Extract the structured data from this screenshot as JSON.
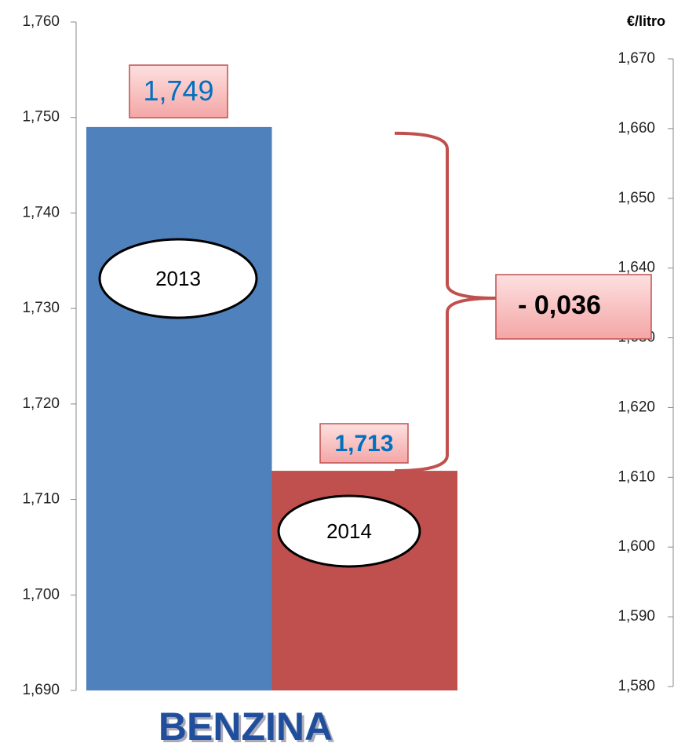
{
  "chart_data": {
    "type": "bar",
    "categories": [
      "2013",
      "2014"
    ],
    "values": [
      1.749,
      1.713
    ],
    "value_labels": [
      "1,749",
      "1,713"
    ],
    "colors": [
      "#4f81bd",
      "#c0504d"
    ],
    "ylim": [
      1.69,
      1.76
    ],
    "yticks": [
      {
        "value": 1.69,
        "label": "1,690"
      },
      {
        "value": 1.7,
        "label": "1,700"
      },
      {
        "value": 1.71,
        "label": "1,710"
      },
      {
        "value": 1.72,
        "label": "1,720"
      },
      {
        "value": 1.73,
        "label": "1,730"
      },
      {
        "value": 1.74,
        "label": "1,740"
      },
      {
        "value": 1.75,
        "label": "1,750"
      },
      {
        "value": 1.76,
        "label": "1,760"
      }
    ],
    "y2lim": [
      1.58,
      1.67
    ],
    "y2ticks": [
      {
        "value": 1.58,
        "label": "1,580"
      },
      {
        "value": 1.59,
        "label": "1,590"
      },
      {
        "value": 1.6,
        "label": "1,600"
      },
      {
        "value": 1.61,
        "label": "1,610"
      },
      {
        "value": 1.62,
        "label": "1,620"
      },
      {
        "value": 1.63,
        "label": "1,630"
      },
      {
        "value": 1.64,
        "label": "1,640"
      },
      {
        "value": 1.65,
        "label": "1,650"
      },
      {
        "value": 1.66,
        "label": "1,660"
      },
      {
        "value": 1.67,
        "label": "1,670"
      }
    ],
    "y2label": "€/litro",
    "annotation": "- 0,036",
    "xlabel": "BENZINA"
  }
}
